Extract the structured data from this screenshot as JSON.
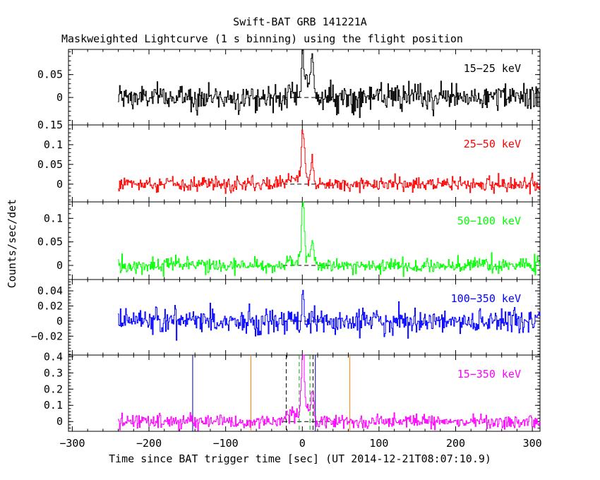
{
  "chart_data": {
    "type": "line",
    "title": "Swift-BAT GRB 141221A",
    "subtitle": "Maskweighted Lightcurve (1 s binning) using the flight position",
    "xlabel": "Time since BAT trigger time [sec] (UT 2014-12-21T08:07:10.9)",
    "ylabel": "Counts/sec/det",
    "xlim": [
      -305,
      310
    ],
    "x_ticks": [
      -300,
      -200,
      -100,
      0,
      100,
      200,
      300
    ],
    "data_range": [
      -240,
      310
    ],
    "panels": [
      {
        "name": "15-25 keV",
        "label": "15−25 keV",
        "color": "#000000",
        "ylim": [
          -0.06,
          0.105
        ],
        "yticks": [
          0,
          0.05
        ],
        "yticklabels": [
          "0",
          "0.05"
        ],
        "noise": 0.014,
        "peaks": [
          {
            "t": 1,
            "amp": 0.085,
            "width": 1.8
          },
          {
            "t": 13,
            "amp": 0.075,
            "width": 1.5
          },
          {
            "t": 6,
            "amp": 0.035,
            "width": 5
          }
        ],
        "precursor": {
          "t0": -22,
          "t1": 0,
          "amp": 0.005
        }
      },
      {
        "name": "25-50 keV",
        "label": "25−50 keV",
        "color": "#ff0000",
        "ylim": [
          -0.045,
          0.15
        ],
        "yticks": [
          0,
          0.05,
          0.1,
          0.15
        ],
        "yticklabels": [
          "0",
          "0.05",
          "0.1",
          "0.15"
        ],
        "noise": 0.009,
        "peaks": [
          {
            "t": 1,
            "amp": 0.13,
            "width": 1.8
          },
          {
            "t": 13,
            "amp": 0.06,
            "width": 1.5
          },
          {
            "t": 6,
            "amp": 0.02,
            "width": 5
          }
        ],
        "precursor": {
          "t0": -22,
          "t1": 0,
          "amp": 0.012
        }
      },
      {
        "name": "50-100 keV",
        "label": "50−100 keV",
        "color": "#00ff00",
        "ylim": [
          -0.03,
          0.135
        ],
        "yticks": [
          0,
          0.05,
          0.1
        ],
        "yticklabels": [
          "0",
          "0.05",
          "0.1"
        ],
        "noise": 0.008,
        "peaks": [
          {
            "t": 1,
            "amp": 0.125,
            "width": 1.6
          },
          {
            "t": 13,
            "amp": 0.045,
            "width": 1.5
          },
          {
            "t": 6,
            "amp": 0.015,
            "width": 5
          }
        ],
        "precursor": {
          "t0": -22,
          "t1": 0,
          "amp": 0.008
        }
      },
      {
        "name": "100-350 keV",
        "label": "100−350 keV",
        "color": "#0000ff",
        "ylim": [
          -0.045,
          0.055
        ],
        "yticks": [
          -0.02,
          0,
          0.02,
          0.04
        ],
        "yticklabels": [
          "−0.02",
          "0",
          "0.02",
          "0.04"
        ],
        "noise": 0.008,
        "peaks": [
          {
            "t": 1,
            "amp": 0.045,
            "width": 1.2
          },
          {
            "t": 13,
            "amp": 0.01,
            "width": 1.5
          }
        ],
        "precursor": {
          "t0": -22,
          "t1": 0,
          "amp": 0.002
        }
      },
      {
        "name": "15-350 keV",
        "label": "15−350 keV",
        "color": "#ff00ff",
        "ylim": [
          -0.06,
          0.41
        ],
        "yticks": [
          0,
          0.1,
          0.2,
          0.3,
          0.4
        ],
        "yticklabels": [
          "0",
          "0.1",
          "0.2",
          "0.3",
          "0.4"
        ],
        "noise": 0.022,
        "peaks": [
          {
            "t": 1,
            "amp": 0.38,
            "width": 1.8
          },
          {
            "t": 13,
            "amp": 0.2,
            "width": 1.5
          },
          {
            "t": 6,
            "amp": 0.08,
            "width": 5
          }
        ],
        "precursor": {
          "t0": -22,
          "t1": 0,
          "amp": 0.04
        },
        "markers": [
          {
            "x": -143,
            "color": "#000080",
            "style": "solid"
          },
          {
            "x": -67,
            "color": "#ff8000",
            "style": "solid"
          },
          {
            "x": -21,
            "color": "#000000",
            "style": "dashed"
          },
          {
            "x": -4,
            "color": "#00aa00",
            "style": "dashed"
          },
          {
            "x": 10,
            "color": "#00aa00",
            "style": "dashed"
          },
          {
            "x": 14,
            "color": "#000000",
            "style": "dashed"
          },
          {
            "x": 17,
            "color": "#000080",
            "style": "solid"
          },
          {
            "x": 62,
            "color": "#ff8000",
            "style": "solid"
          }
        ]
      }
    ]
  }
}
